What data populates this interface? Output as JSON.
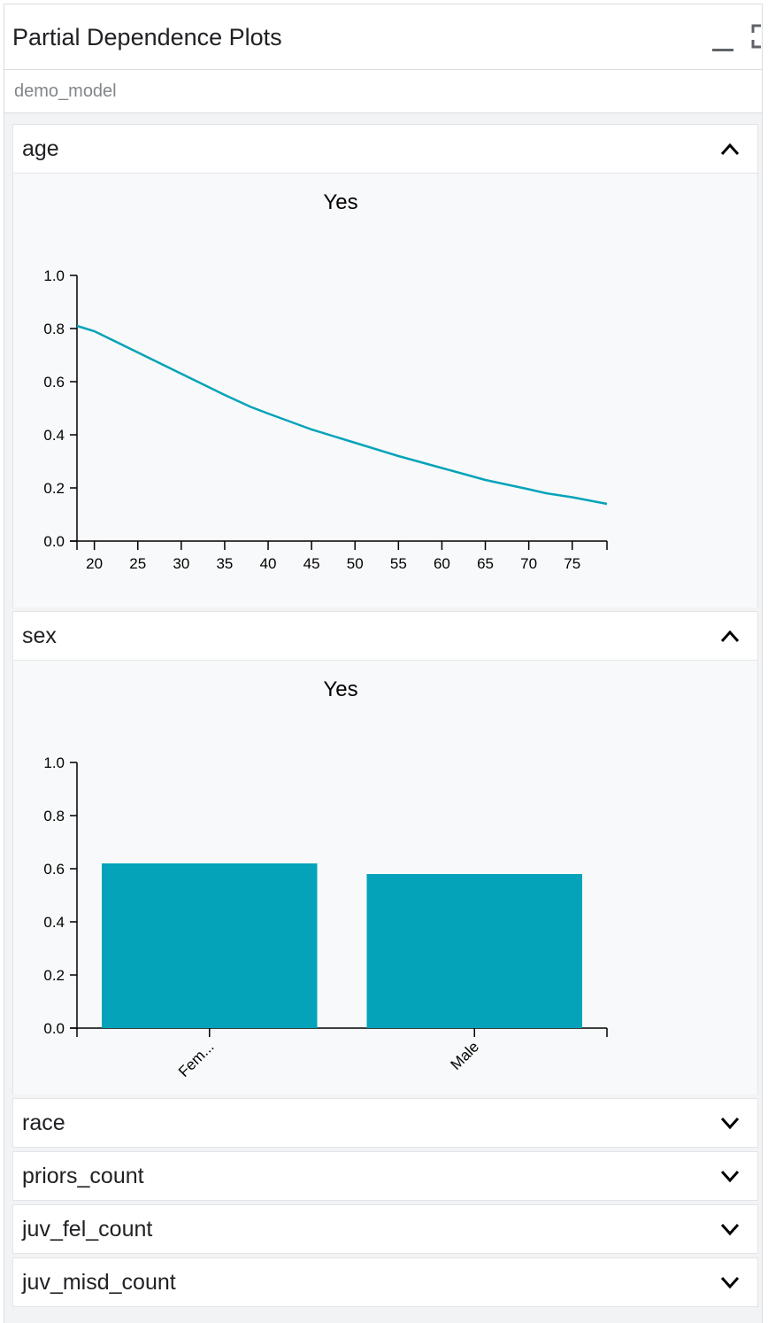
{
  "panel": {
    "title": "Partial Dependence Plots",
    "model": "demo_model"
  },
  "sections": [
    {
      "label": "age",
      "expanded": true
    },
    {
      "label": "sex",
      "expanded": true
    },
    {
      "label": "race",
      "expanded": false
    },
    {
      "label": "priors_count",
      "expanded": false
    },
    {
      "label": "juv_fel_count",
      "expanded": false
    },
    {
      "label": "juv_misd_count",
      "expanded": false
    }
  ],
  "colors": {
    "series": "#04a3ba",
    "axis": "#000000"
  },
  "chart_data": [
    {
      "type": "line",
      "title": "Yes",
      "xlabel": "",
      "ylabel": "",
      "xlim": [
        18,
        79
      ],
      "ylim": [
        0,
        1
      ],
      "x_ticks": [
        20,
        25,
        30,
        35,
        40,
        45,
        50,
        55,
        60,
        65,
        70,
        75
      ],
      "y_ticks": [
        0.0,
        0.2,
        0.4,
        0.6,
        0.8,
        1.0
      ],
      "x": [
        18,
        20,
        25,
        30,
        35,
        38,
        40,
        45,
        50,
        55,
        60,
        65,
        70,
        72,
        75,
        79
      ],
      "y": [
        0.81,
        0.79,
        0.71,
        0.63,
        0.55,
        0.505,
        0.48,
        0.42,
        0.37,
        0.32,
        0.275,
        0.23,
        0.195,
        0.18,
        0.165,
        0.14
      ]
    },
    {
      "type": "bar",
      "title": "Yes",
      "xlabel": "",
      "ylabel": "",
      "ylim": [
        0,
        1
      ],
      "y_ticks": [
        0.0,
        0.2,
        0.4,
        0.6,
        0.8,
        1.0
      ],
      "categories": [
        "Fem...",
        "Male"
      ],
      "values": [
        0.62,
        0.58
      ]
    }
  ]
}
